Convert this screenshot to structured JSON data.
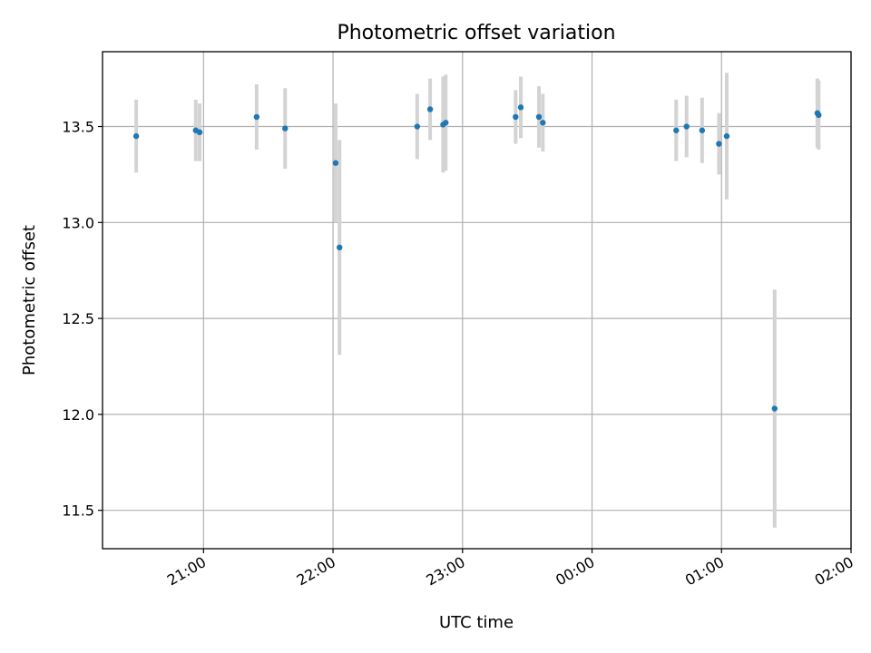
{
  "chart_data": {
    "type": "scatter",
    "title": "Photometric offset variation",
    "xlabel": "UTC time",
    "ylabel": "Photometric offset",
    "x_ticks": [
      "21:00",
      "22:00",
      "23:00",
      "00:00",
      "01:00",
      "02:00"
    ],
    "x_tick_hours": [
      21,
      22,
      23,
      24,
      25,
      26
    ],
    "xlim": [
      20.22,
      26.0
    ],
    "y_ticks": [
      "11.5",
      "12.0",
      "12.5",
      "13.0",
      "13.5"
    ],
    "y_tick_values": [
      11.5,
      12.0,
      12.5,
      13.0,
      13.5
    ],
    "ylim": [
      11.3,
      13.89
    ],
    "grid": true,
    "error_bar_color": "#d3d3d3",
    "point_color": "#1f77b4",
    "series": [
      {
        "points": [
          {
            "time": "20:30",
            "hour": 20.48,
            "y": 13.45,
            "err": 0.19
          },
          {
            "time": "20:57",
            "hour": 20.94,
            "y": 13.48,
            "err": 0.16
          },
          {
            "time": "20:58",
            "hour": 20.97,
            "y": 13.47,
            "err": 0.15
          },
          {
            "time": "21:25",
            "hour": 21.41,
            "y": 13.55,
            "err": 0.17
          },
          {
            "time": "21:38",
            "hour": 21.63,
            "y": 13.49,
            "err": 0.21
          },
          {
            "time": "22:01",
            "hour": 22.02,
            "y": 13.31,
            "err": 0.31
          },
          {
            "time": "22:03",
            "hour": 22.05,
            "y": 12.87,
            "err": 0.56
          },
          {
            "time": "22:39",
            "hour": 22.65,
            "y": 13.5,
            "err": 0.17
          },
          {
            "time": "22:45",
            "hour": 22.75,
            "y": 13.59,
            "err": 0.16
          },
          {
            "time": "22:51",
            "hour": 22.85,
            "y": 13.51,
            "err": 0.25
          },
          {
            "time": "22:52",
            "hour": 22.87,
            "y": 13.52,
            "err": 0.25
          },
          {
            "time": "23:25",
            "hour": 23.41,
            "y": 13.55,
            "err": 0.14
          },
          {
            "time": "23:27",
            "hour": 23.45,
            "y": 13.6,
            "err": 0.16
          },
          {
            "time": "23:35",
            "hour": 23.59,
            "y": 13.55,
            "err": 0.16
          },
          {
            "time": "23:37",
            "hour": 23.62,
            "y": 13.52,
            "err": 0.15
          },
          {
            "time": "00:39",
            "hour": 24.65,
            "y": 13.48,
            "err": 0.16
          },
          {
            "time": "00:44",
            "hour": 24.73,
            "y": 13.5,
            "err": 0.16
          },
          {
            "time": "00:51",
            "hour": 24.85,
            "y": 13.48,
            "err": 0.17
          },
          {
            "time": "00:59",
            "hour": 24.98,
            "y": 13.41,
            "err": 0.16
          },
          {
            "time": "01:02",
            "hour": 25.04,
            "y": 13.45,
            "err": 0.33
          },
          {
            "time": "01:25",
            "hour": 25.41,
            "y": 12.03,
            "err": 0.62
          },
          {
            "time": "01:44",
            "hour": 25.74,
            "y": 13.57,
            "err": 0.18
          },
          {
            "time": "01:45",
            "hour": 25.75,
            "y": 13.56,
            "err": 0.18
          }
        ]
      }
    ]
  }
}
